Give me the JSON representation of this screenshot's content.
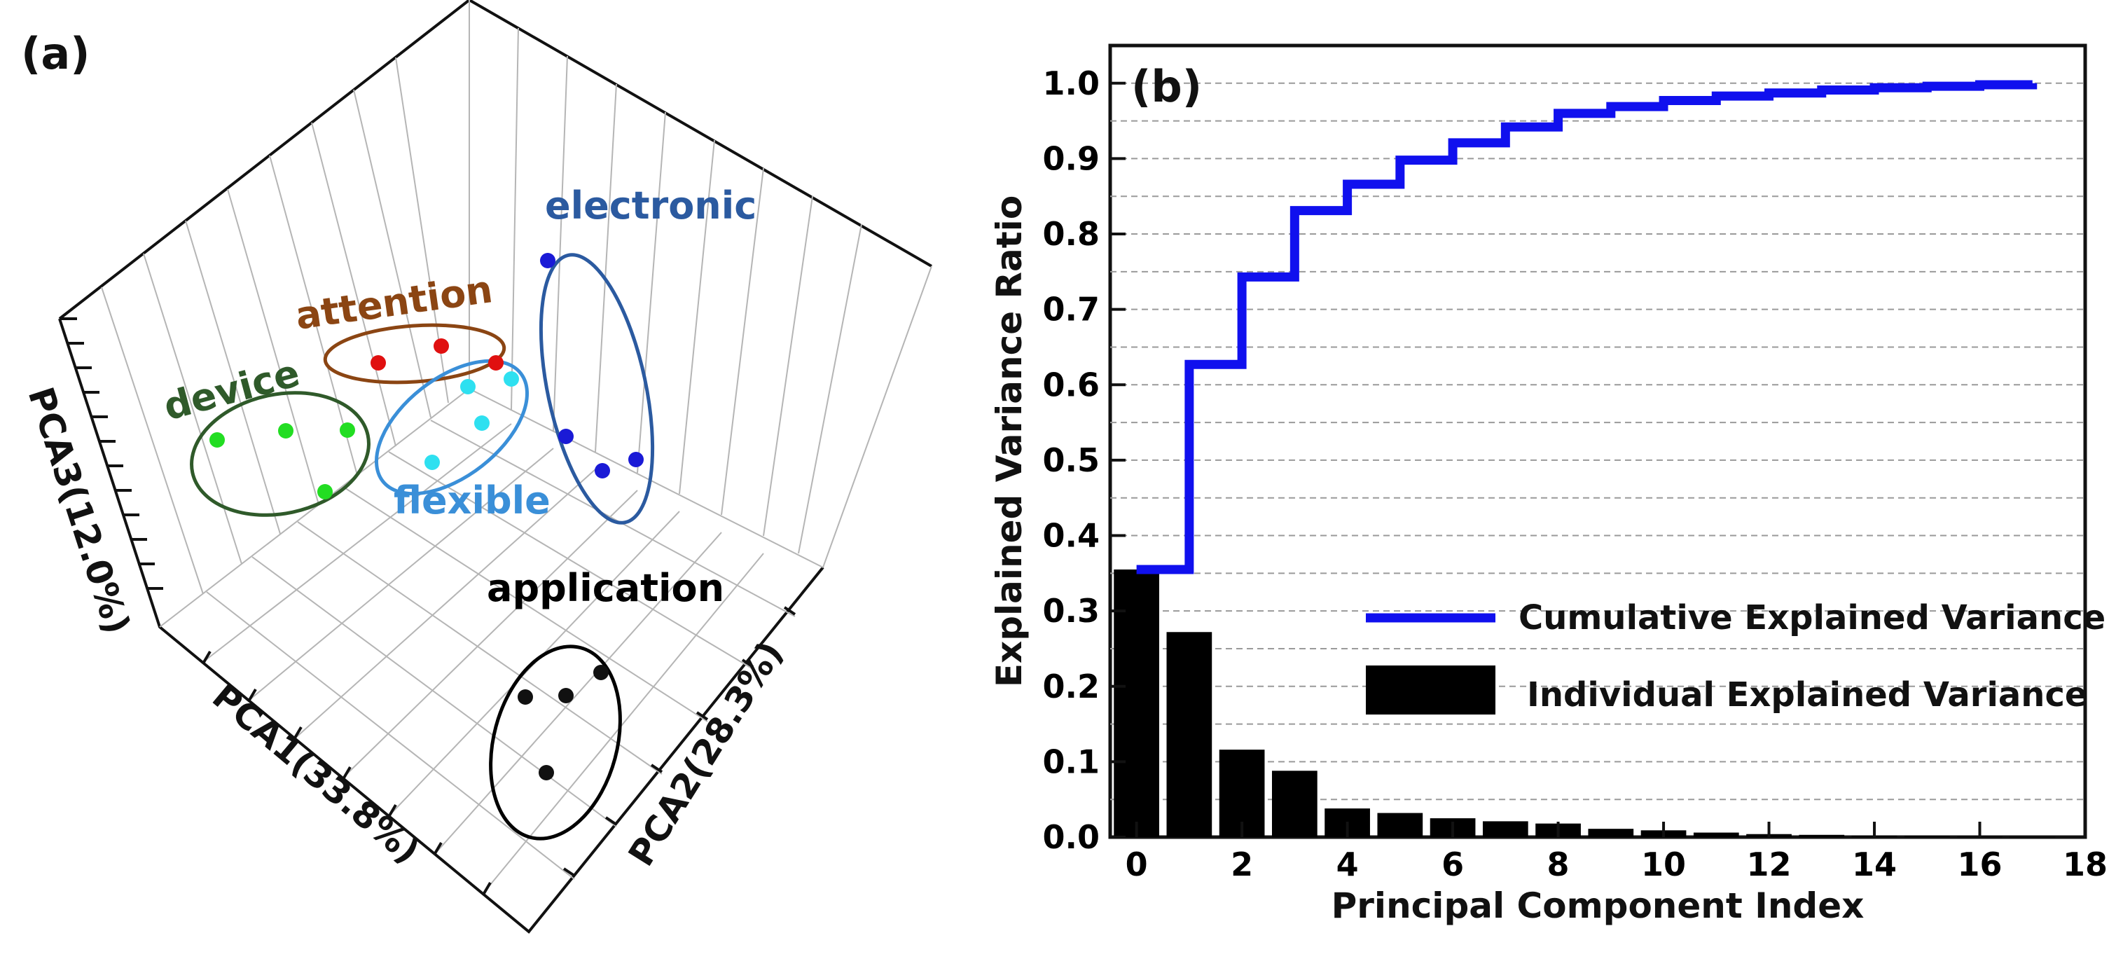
{
  "chart_data": [
    {
      "panel": "(a)",
      "type": "scatter",
      "title": "",
      "axes": {
        "x": "PCA1(33.8%)",
        "y": "PCA2(28.3%)",
        "z": "PCA3(12.0%)"
      },
      "clusters": [
        {
          "label": "electronic",
          "color": "#2b5aa0",
          "point_color": "#1a1ad6",
          "n_points": 4
        },
        {
          "label": "attention",
          "color": "#8b4513",
          "point_color": "#e01010",
          "n_points": 3
        },
        {
          "label": "flexible",
          "color": "#3a8fd8",
          "point_color": "#2ee0f0",
          "n_points": 4
        },
        {
          "label": "device",
          "color": "#2f5a2a",
          "point_color": "#22dd22",
          "n_points": 4
        },
        {
          "label": "application",
          "color": "#000000",
          "point_color": "#111111",
          "n_points": 4
        }
      ]
    },
    {
      "panel": "(b)",
      "type": "bar",
      "xlabel": "Principal Component Index",
      "ylabel": "Explained Variance Ratio",
      "xlim": [
        -0.5,
        18
      ],
      "ylim": [
        0,
        1.05
      ],
      "xticks": [
        "0",
        "2",
        "4",
        "6",
        "8",
        "10",
        "12",
        "14",
        "16",
        "18"
      ],
      "yticks": [
        "0.0",
        "0.1",
        "0.2",
        "0.3",
        "0.4",
        "0.5",
        "0.6",
        "0.7",
        "0.8",
        "0.9",
        "1.0"
      ],
      "series": [
        {
          "name": "Individual Explained Variance",
          "kind": "bar",
          "color": "#000000",
          "x": [
            0,
            1,
            2,
            3,
            4,
            5,
            6,
            7,
            8,
            9,
            10,
            11,
            12,
            13,
            14,
            15,
            16,
            17
          ],
          "values": [
            0.355,
            0.272,
            0.116,
            0.088,
            0.038,
            0.032,
            0.025,
            0.021,
            0.018,
            0.011,
            0.009,
            0.006,
            0.004,
            0.003,
            0.002,
            0.0015,
            0.0005,
            0.0002
          ]
        },
        {
          "name": "Cumulative Explained Variance",
          "kind": "step",
          "color": "#1010ee",
          "x": [
            0,
            1,
            2,
            3,
            4,
            5,
            6,
            7,
            8,
            9,
            10,
            11,
            12,
            13,
            14,
            15,
            16,
            17
          ],
          "values": [
            0.355,
            0.627,
            0.743,
            0.831,
            0.866,
            0.898,
            0.921,
            0.942,
            0.96,
            0.969,
            0.977,
            0.983,
            0.987,
            0.991,
            0.994,
            0.996,
            0.998,
            1.0
          ]
        }
      ]
    }
  ]
}
